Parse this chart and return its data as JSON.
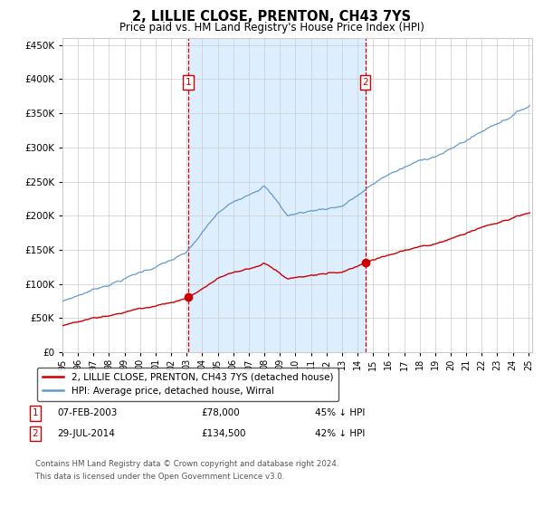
{
  "title": "2, LILLIE CLOSE, PRENTON, CH43 7YS",
  "subtitle": "Price paid vs. HM Land Registry's House Price Index (HPI)",
  "legend_label_red": "2, LILLIE CLOSE, PRENTON, CH43 7YS (detached house)",
  "legend_label_blue": "HPI: Average price, detached house, Wirral",
  "transaction1_label": "1",
  "transaction1_date": "07-FEB-2003",
  "transaction1_price": "£78,000",
  "transaction1_hpi": "45% ↓ HPI",
  "transaction2_label": "2",
  "transaction2_date": "29-JUL-2014",
  "transaction2_price": "£134,500",
  "transaction2_hpi": "42% ↓ HPI",
  "footer_line1": "Contains HM Land Registry data © Crown copyright and database right 2024.",
  "footer_line2": "This data is licensed under the Open Government Licence v3.0.",
  "red_color": "#cc0000",
  "blue_color": "#6699cc",
  "fill_color": "#ddeeff",
  "bg_color": "#ffffff",
  "grid_color": "#cccccc",
  "ylim": [
    0,
    460000
  ],
  "yticks": [
    0,
    50000,
    100000,
    150000,
    200000,
    250000,
    300000,
    350000,
    400000,
    450000
  ]
}
